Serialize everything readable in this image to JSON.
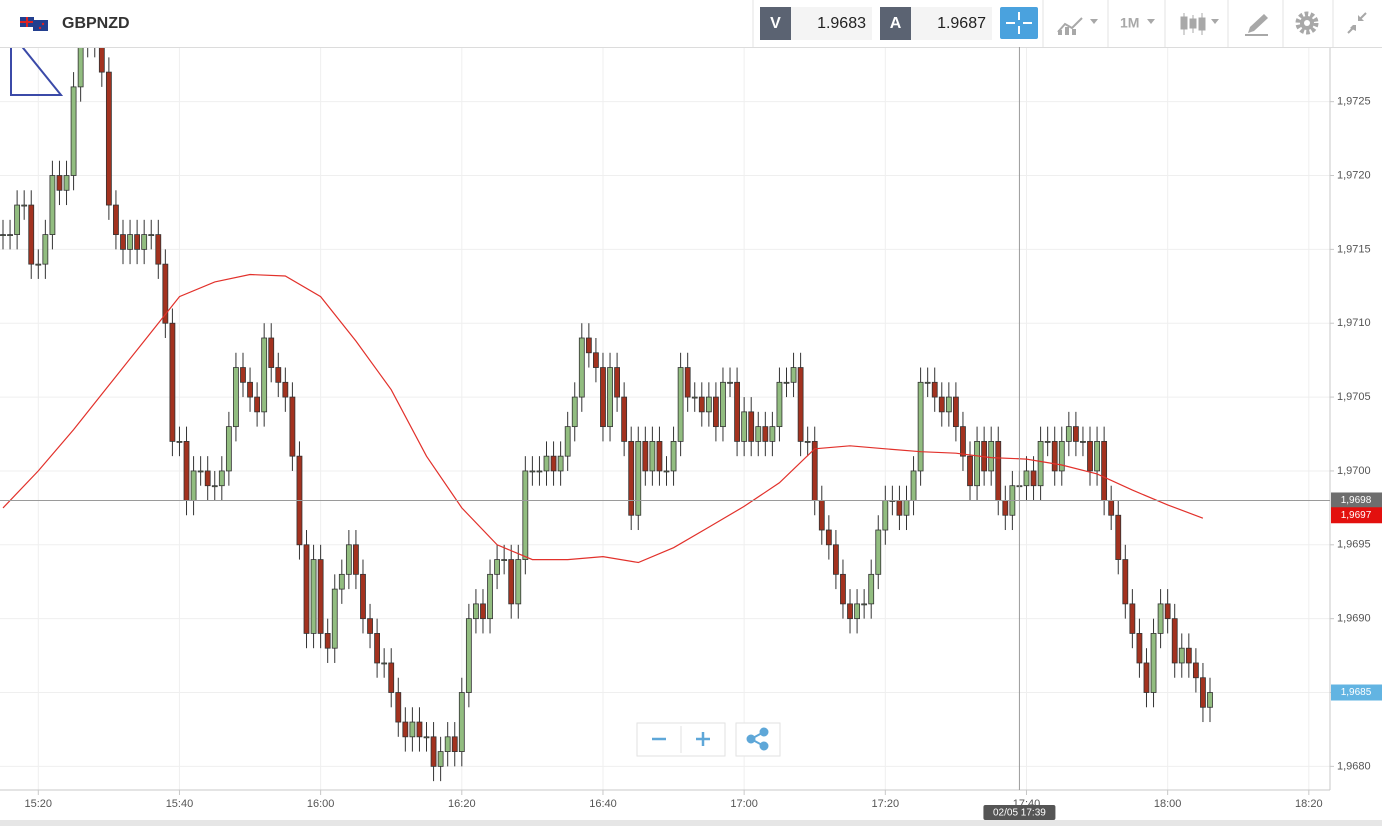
{
  "toolbar": {
    "symbol": "GBPNZD",
    "sell_label": "V",
    "sell_price": 1.9683,
    "buy_label": "A",
    "buy_price": 1.9687,
    "timeframe": "1M"
  },
  "chart_data": {
    "type": "candlestick",
    "x": [
      "15:15",
      "15:16",
      "15:17",
      "15:18",
      "15:19",
      "15:20",
      "15:21",
      "15:22",
      "15:23",
      "15:24",
      "15:25",
      "15:26",
      "15:27",
      "15:28",
      "15:29",
      "15:30",
      "15:31",
      "15:32",
      "15:33",
      "15:34",
      "15:35",
      "15:36",
      "15:37",
      "15:38",
      "15:39",
      "15:40",
      "15:41",
      "15:42",
      "15:43",
      "15:44",
      "15:45",
      "15:46",
      "15:47",
      "15:48",
      "15:49",
      "15:50",
      "15:51",
      "15:52",
      "15:53",
      "15:54",
      "15:55",
      "15:56",
      "15:57",
      "15:58",
      "15:59",
      "16:00",
      "16:01",
      "16:02",
      "16:03",
      "16:04",
      "16:05",
      "16:06",
      "16:07",
      "16:08",
      "16:09",
      "16:10",
      "16:11",
      "16:12",
      "16:13",
      "16:14",
      "16:15",
      "16:16",
      "16:17",
      "16:18",
      "16:19",
      "16:20",
      "16:21",
      "16:22",
      "16:23",
      "16:24",
      "16:25",
      "16:26",
      "16:27",
      "16:28",
      "16:29",
      "16:30",
      "16:31",
      "16:32",
      "16:33",
      "16:34",
      "16:35",
      "16:36",
      "16:37",
      "16:38",
      "16:39",
      "16:40",
      "16:41",
      "16:42",
      "16:43",
      "16:44",
      "16:45",
      "16:46",
      "16:47",
      "16:48",
      "16:49",
      "16:50",
      "16:51",
      "16:52",
      "16:53",
      "16:54",
      "16:55",
      "16:56",
      "16:57",
      "16:58",
      "16:59",
      "17:00",
      "17:01",
      "17:02",
      "17:03",
      "17:04",
      "17:05",
      "17:06",
      "17:07",
      "17:08",
      "17:09",
      "17:10",
      "17:11",
      "17:12",
      "17:13",
      "17:14",
      "17:15",
      "17:16",
      "17:17",
      "17:18",
      "17:19",
      "17:20",
      "17:21",
      "17:22",
      "17:23",
      "17:24",
      "17:25",
      "17:26",
      "17:27",
      "17:28",
      "17:29",
      "17:30",
      "17:31",
      "17:32",
      "17:33",
      "17:34",
      "17:35",
      "17:36",
      "17:37",
      "17:38",
      "17:39",
      "17:40",
      "17:41",
      "17:42",
      "17:43",
      "17:44",
      "17:45",
      "17:46",
      "17:47",
      "17:48",
      "17:49",
      "17:50",
      "17:51",
      "17:52",
      "17:53",
      "17:54",
      "17:55",
      "17:56",
      "17:57",
      "17:58",
      "17:59",
      "18:00",
      "18:01",
      "18:02",
      "18:03",
      "18:04",
      "18:05",
      "18:06"
    ],
    "open": [
      1.9716,
      1.9716,
      1.9716,
      1.9718,
      1.9718,
      1.9714,
      1.9714,
      1.9716,
      1.972,
      1.9719,
      1.972,
      1.9726,
      1.9729,
      1.9729,
      1.9729,
      1.9727,
      1.9718,
      1.9716,
      1.9715,
      1.9716,
      1.9715,
      1.9716,
      1.9716,
      1.9714,
      1.971,
      1.9702,
      1.9702,
      1.9698,
      1.97,
      1.97,
      1.9699,
      1.9699,
      1.97,
      1.9703,
      1.9707,
      1.9706,
      1.9705,
      1.9704,
      1.9709,
      1.9707,
      1.9706,
      1.9705,
      1.9701,
      1.9695,
      1.9689,
      1.9694,
      1.9689,
      1.9688,
      1.9692,
      1.9693,
      1.9695,
      1.9693,
      1.969,
      1.9689,
      1.9687,
      1.9687,
      1.9685,
      1.9683,
      1.9682,
      1.9683,
      1.9682,
      1.9682,
      1.968,
      1.9681,
      1.9682,
      1.9681,
      1.9685,
      1.969,
      1.9691,
      1.969,
      1.9693,
      1.9694,
      1.9694,
      1.9691,
      1.9694,
      1.97,
      1.97,
      1.97,
      1.9701,
      1.97,
      1.9701,
      1.9703,
      1.9705,
      1.9709,
      1.9708,
      1.9707,
      1.9703,
      1.9707,
      1.9705,
      1.9702,
      1.9697,
      1.9702,
      1.97,
      1.9702,
      1.97,
      1.97,
      1.9702,
      1.9707,
      1.9705,
      1.9705,
      1.9704,
      1.9705,
      1.9703,
      1.9706,
      1.9706,
      1.9702,
      1.9704,
      1.9702,
      1.9703,
      1.9702,
      1.9703,
      1.9706,
      1.9706,
      1.9707,
      1.9702,
      1.9702,
      1.9698,
      1.9696,
      1.9695,
      1.9693,
      1.9691,
      1.969,
      1.9691,
      1.9691,
      1.9693,
      1.9696,
      1.9698,
      1.9698,
      1.9697,
      1.9698,
      1.97,
      1.9706,
      1.9706,
      1.9705,
      1.9704,
      1.9705,
      1.9703,
      1.9701,
      1.9699,
      1.9702,
      1.97,
      1.9702,
      1.9698,
      1.9697,
      1.9699,
      1.9699,
      1.97,
      1.9699,
      1.9702,
      1.9702,
      1.97,
      1.9702,
      1.9703,
      1.9702,
      1.9702,
      1.97,
      1.9702,
      1.9698,
      1.9697,
      1.9694,
      1.9691,
      1.9689,
      1.9687,
      1.9685,
      1.9689,
      1.9691,
      1.969,
      1.9687,
      1.9688,
      1.9687,
      1.9686,
      1.9684
    ],
    "high": [
      1.9717,
      1.9717,
      1.9719,
      1.9719,
      1.9719,
      1.9715,
      1.9717,
      1.9721,
      1.9721,
      1.9721,
      1.9727,
      1.973,
      1.973,
      1.973,
      1.973,
      1.9728,
      1.9719,
      1.9717,
      1.9717,
      1.9717,
      1.9717,
      1.9717,
      1.9717,
      1.9715,
      1.9711,
      1.9703,
      1.9703,
      1.9701,
      1.9701,
      1.9701,
      1.97,
      1.9701,
      1.9704,
      1.9708,
      1.9708,
      1.9707,
      1.9706,
      1.971,
      1.971,
      1.9708,
      1.9707,
      1.9706,
      1.9702,
      1.9696,
      1.9695,
      1.9695,
      1.969,
      1.9693,
      1.9694,
      1.9696,
      1.9696,
      1.9694,
      1.9691,
      1.969,
      1.9688,
      1.9688,
      1.9686,
      1.9684,
      1.9684,
      1.9684,
      1.9683,
      1.9683,
      1.9682,
      1.9683,
      1.9683,
      1.9686,
      1.9691,
      1.9692,
      1.9692,
      1.9694,
      1.9695,
      1.9695,
      1.9695,
      1.9695,
      1.9701,
      1.9701,
      1.9701,
      1.9702,
      1.9702,
      1.9702,
      1.9704,
      1.9706,
      1.971,
      1.971,
      1.9709,
      1.9708,
      1.9708,
      1.9708,
      1.9706,
      1.9703,
      1.9703,
      1.9703,
      1.9703,
      1.9703,
      1.9701,
      1.9703,
      1.9708,
      1.9708,
      1.9706,
      1.9706,
      1.9706,
      1.9706,
      1.9707,
      1.9707,
      1.9707,
      1.9705,
      1.9705,
      1.9704,
      1.9704,
      1.9704,
      1.9707,
      1.9707,
      1.9708,
      1.9708,
      1.9703,
      1.9703,
      1.9699,
      1.9697,
      1.9696,
      1.9694,
      1.9692,
      1.9692,
      1.9692,
      1.9694,
      1.9697,
      1.9699,
      1.9699,
      1.9699,
      1.9699,
      1.9701,
      1.9707,
      1.9707,
      1.9707,
      1.9706,
      1.9706,
      1.9706,
      1.9704,
      1.9702,
      1.9703,
      1.9703,
      1.9703,
      1.9703,
      1.9699,
      1.97,
      1.97,
      1.9701,
      1.9701,
      1.9703,
      1.9703,
      1.9703,
      1.9703,
      1.9704,
      1.9704,
      1.9703,
      1.9703,
      1.9703,
      1.9703,
      1.9699,
      1.9698,
      1.9695,
      1.9692,
      1.969,
      1.9688,
      1.969,
      1.9692,
      1.9692,
      1.9691,
      1.9689,
      1.9689,
      1.9688,
      1.9687,
      1.9686
    ],
    "low": [
      1.9715,
      1.9715,
      1.9715,
      1.9717,
      1.9713,
      1.9713,
      1.9713,
      1.9715,
      1.9718,
      1.9718,
      1.9719,
      1.9725,
      1.9728,
      1.9728,
      1.9726,
      1.9717,
      1.9715,
      1.9714,
      1.9714,
      1.9714,
      1.9714,
      1.9715,
      1.9713,
      1.9709,
      1.9701,
      1.9701,
      1.9697,
      1.9697,
      1.9699,
      1.9698,
      1.9698,
      1.9698,
      1.9699,
      1.9702,
      1.9705,
      1.9704,
      1.9703,
      1.9703,
      1.9706,
      1.9705,
      1.9704,
      1.97,
      1.9694,
      1.9688,
      1.9688,
      1.9688,
      1.9687,
      1.9687,
      1.9691,
      1.9692,
      1.9692,
      1.9689,
      1.9688,
      1.9686,
      1.9686,
      1.9684,
      1.9682,
      1.9681,
      1.9681,
      1.9681,
      1.9681,
      1.9679,
      1.9679,
      1.968,
      1.968,
      1.968,
      1.9684,
      1.9689,
      1.9689,
      1.9689,
      1.9692,
      1.9693,
      1.969,
      1.969,
      1.9693,
      1.9699,
      1.9699,
      1.9699,
      1.9699,
      1.9699,
      1.97,
      1.9702,
      1.9704,
      1.9707,
      1.9706,
      1.9702,
      1.9702,
      1.9704,
      1.9701,
      1.9696,
      1.9696,
      1.9699,
      1.9699,
      1.9699,
      1.9699,
      1.9699,
      1.9701,
      1.9704,
      1.9704,
      1.9703,
      1.9703,
      1.9702,
      1.9702,
      1.9705,
      1.9701,
      1.9701,
      1.9701,
      1.9701,
      1.9701,
      1.9701,
      1.9702,
      1.9705,
      1.9705,
      1.9701,
      1.9701,
      1.9697,
      1.9695,
      1.9694,
      1.9692,
      1.969,
      1.9689,
      1.9689,
      1.969,
      1.969,
      1.9692,
      1.9695,
      1.9697,
      1.9696,
      1.9696,
      1.9697,
      1.9699,
      1.9705,
      1.9704,
      1.9703,
      1.9703,
      1.9702,
      1.97,
      1.9698,
      1.9698,
      1.9699,
      1.9699,
      1.9697,
      1.9696,
      1.9696,
      1.9698,
      1.9698,
      1.9698,
      1.9698,
      1.9701,
      1.9699,
      1.9699,
      1.9701,
      1.9701,
      1.9701,
      1.9699,
      1.9699,
      1.9697,
      1.9696,
      1.9693,
      1.969,
      1.9688,
      1.9686,
      1.9684,
      1.9684,
      1.9688,
      1.9689,
      1.9686,
      1.9686,
      1.9686,
      1.9685,
      1.9683,
      1.9683
    ],
    "close": [
      1.9716,
      1.9716,
      1.9718,
      1.9718,
      1.9714,
      1.9714,
      1.9716,
      1.972,
      1.9719,
      1.972,
      1.9726,
      1.9729,
      1.9729,
      1.9729,
      1.9727,
      1.9718,
      1.9716,
      1.9715,
      1.9716,
      1.9715,
      1.9716,
      1.9716,
      1.9714,
      1.971,
      1.9702,
      1.9702,
      1.9698,
      1.97,
      1.97,
      1.9699,
      1.9699,
      1.97,
      1.9703,
      1.9707,
      1.9706,
      1.9705,
      1.9704,
      1.9709,
      1.9707,
      1.9706,
      1.9705,
      1.9701,
      1.9695,
      1.9689,
      1.9694,
      1.9689,
      1.9688,
      1.9692,
      1.9693,
      1.9695,
      1.9693,
      1.969,
      1.9689,
      1.9687,
      1.9687,
      1.9685,
      1.9683,
      1.9682,
      1.9683,
      1.9682,
      1.9682,
      1.968,
      1.9681,
      1.9682,
      1.9681,
      1.9685,
      1.969,
      1.9691,
      1.969,
      1.9693,
      1.9694,
      1.9694,
      1.9691,
      1.9694,
      1.97,
      1.97,
      1.97,
      1.9701,
      1.97,
      1.9701,
      1.9703,
      1.9705,
      1.9709,
      1.9708,
      1.9707,
      1.9703,
      1.9707,
      1.9705,
      1.9702,
      1.9697,
      1.9702,
      1.97,
      1.9702,
      1.97,
      1.97,
      1.9702,
      1.9707,
      1.9705,
      1.9705,
      1.9704,
      1.9705,
      1.9703,
      1.9706,
      1.9706,
      1.9702,
      1.9704,
      1.9702,
      1.9703,
      1.9702,
      1.9703,
      1.9706,
      1.9706,
      1.9707,
      1.9702,
      1.9702,
      1.9698,
      1.9696,
      1.9695,
      1.9693,
      1.9691,
      1.969,
      1.9691,
      1.9691,
      1.9693,
      1.9696,
      1.9698,
      1.9698,
      1.9697,
      1.9698,
      1.97,
      1.9706,
      1.9706,
      1.9705,
      1.9704,
      1.9705,
      1.9703,
      1.9701,
      1.9699,
      1.9702,
      1.97,
      1.9702,
      1.9698,
      1.9697,
      1.9699,
      1.9699,
      1.97,
      1.9699,
      1.9702,
      1.9702,
      1.97,
      1.9702,
      1.9703,
      1.9702,
      1.9702,
      1.97,
      1.9702,
      1.9698,
      1.9697,
      1.9694,
      1.9691,
      1.9689,
      1.9687,
      1.9685,
      1.9689,
      1.9691,
      1.969,
      1.9687,
      1.9688,
      1.9687,
      1.9686,
      1.9684,
      1.9685
    ],
    "up_color": "#92bd80",
    "down_color": "#a3321f",
    "ma": {
      "color": "#e2312b",
      "x": [
        "15:15",
        "15:20",
        "15:25",
        "15:30",
        "15:35",
        "15:40",
        "15:45",
        "15:50",
        "15:55",
        "16:00",
        "16:05",
        "16:10",
        "16:15",
        "16:20",
        "16:25",
        "16:30",
        "16:35",
        "16:40",
        "16:45",
        "16:50",
        "16:55",
        "17:00",
        "17:05",
        "17:10",
        "17:15",
        "17:20",
        "17:25",
        "17:30",
        "17:35",
        "17:40",
        "17:45",
        "17:50",
        "17:55",
        "18:00",
        "18:05"
      ],
      "values": [
        1.96975,
        1.97,
        1.97028,
        1.97058,
        1.97088,
        1.97118,
        1.97128,
        1.97133,
        1.97132,
        1.97118,
        1.97088,
        1.97055,
        1.9701,
        1.96975,
        1.9695,
        1.9694,
        1.9694,
        1.96942,
        1.96938,
        1.96948,
        1.96962,
        1.96976,
        1.96992,
        1.97015,
        1.97017,
        1.97015,
        1.97013,
        1.97012,
        1.97009,
        1.97008,
        1.97004,
        1.96998,
        1.96987,
        1.96977,
        1.96968
      ]
    },
    "xlim": [
      "15:15",
      "18:23"
    ],
    "xticks": [
      "15:20",
      "15:40",
      "16:00",
      "16:20",
      "16:40",
      "17:00",
      "17:20",
      "17:40",
      "18:00",
      "18:20"
    ],
    "ylim": [
      1.96784,
      1.97287
    ],
    "yticks": [
      {
        "value": 1.968,
        "label": "1,9680"
      },
      {
        "value": 1.9685,
        "label": "1,9685"
      },
      {
        "value": 1.969,
        "label": "1,9690"
      },
      {
        "value": 1.9695,
        "label": "1,9695"
      },
      {
        "value": 1.97,
        "label": "1,9700"
      },
      {
        "value": 1.9705,
        "label": "1,9705"
      },
      {
        "value": 1.971,
        "label": "1,9710"
      },
      {
        "value": 1.9715,
        "label": "1,9715"
      },
      {
        "value": 1.972,
        "label": "1,9720"
      },
      {
        "value": 1.9725,
        "label": "1,9725"
      }
    ],
    "grid": true,
    "price_tags": [
      {
        "value": 1.9698,
        "label": "1,9698",
        "color": "#6e6e6e"
      },
      {
        "value": 1.9697,
        "label": "1,9697",
        "color": "#e3100e"
      },
      {
        "value": 1.9685,
        "label": "1,9685",
        "color": "#62b4e2"
      }
    ],
    "crosshair": {
      "x": "17:39",
      "y": 1.9698,
      "label": "02/05 17:39"
    }
  }
}
